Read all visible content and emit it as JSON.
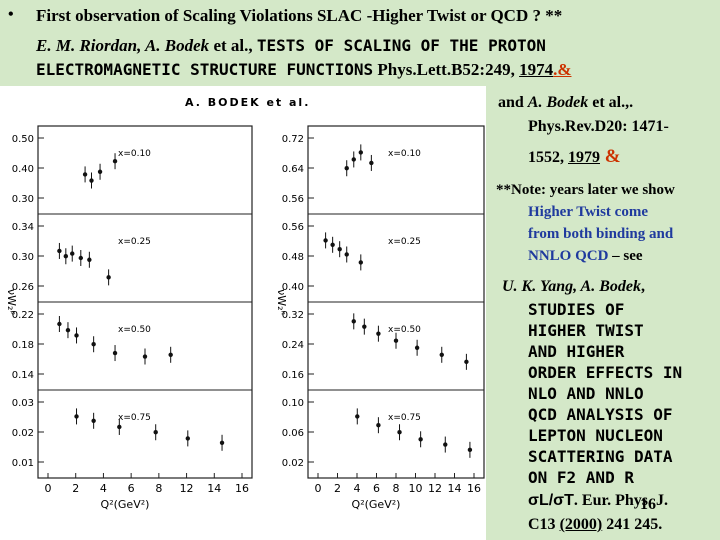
{
  "header": {
    "bullet": "•",
    "line1": "First observation of Scaling Violations SLAC -Higher Twist or QCD ? **",
    "authors": "E. M. Riordan, A. Bodek",
    "authors_etal": " et al., ",
    "title_part1": "TESTS OF SCALING OF THE PROTON",
    "title_part2": "ELECTROMAGNETIC STRUCTURE FUNCTIONS",
    "journal": " Phys.Lett.B52:249, ",
    "year": "1974",
    "amp": ".&"
  },
  "figure": {
    "header_label": "A. BODEK et al.",
    "left_ylabel": "νW₂ᵖ",
    "right_ylabel": "νW₂ⁿ",
    "left_xlabel": "Q²(GeV²)",
    "right_xlabel": "Q²(GeV²)",
    "left_xticks": [
      "0",
      "2",
      "4",
      "6",
      "8",
      "12",
      "14",
      "16"
    ],
    "right_xticks": [
      "0",
      "2",
      "4",
      "6",
      "8",
      "10",
      "12",
      "14",
      "16"
    ],
    "left_panels": [
      {
        "label": "x=0.10",
        "ticks": [
          "0.50",
          "0.40",
          "0.30"
        ]
      },
      {
        "label": "x=0.25",
        "ticks": [
          "0.34",
          "0.30",
          "0.26"
        ]
      },
      {
        "label": "x=0.50",
        "ticks": [
          "0.22",
          "0.18",
          "0.14"
        ]
      },
      {
        "label": "x=0.75",
        "ticks": [
          "0.03",
          "0.02",
          "0.01"
        ]
      }
    ],
    "right_panels": [
      {
        "label": "x=0.10",
        "ticks": [
          "0.72",
          "0.64",
          "0.56"
        ]
      },
      {
        "label": "x=0.25",
        "ticks": [
          "0.56",
          "0.48",
          "0.40"
        ]
      },
      {
        "label": "x=0.50",
        "ticks": [
          "0.32",
          "0.24",
          "0.16"
        ]
      },
      {
        "label": "x=0.75",
        "ticks": [
          "0.10",
          "0.06",
          "0.02"
        ]
      }
    ]
  },
  "right_column": {
    "and_prefix": "and ",
    "ref2_authors": "A. Bodek",
    "ref2_etal": " et al.,.",
    "ref2_journal": "Phys.Rev.D20: 1471-",
    "ref2_pages": "1552, ",
    "ref2_year": "1979",
    "ref2_amp": " &",
    "note_prefix": "**Note: years later we show",
    "note_blue_1": "Higher Twist come",
    "note_blue_2": "from both binding and",
    "note_blue_3": "NNLO QCD",
    "note_suffix": " – see",
    "ref3_authors": "U. K. Yang, A. Bodek",
    "ref3_comma": ",",
    "ref3_title": [
      "STUDIES OF",
      "HIGHER TWIST",
      "AND HIGHER",
      "ORDER EFFECTS IN",
      "NLO AND NNLO",
      "QCD ANALYSIS OF",
      "LEPTON NUCLEON",
      "SCATTERING DATA",
      "ON F2 AND R"
    ],
    "ref3_sigma": "σL/σT",
    "ref3_journal": ". Eur. Phys. J.",
    "ref3_vol": "C13 ",
    "ref3_year": "(2000)",
    "ref3_pages": " 241 245.",
    "slide_number": "16"
  },
  "colors": {
    "background": "#d4e8c8",
    "blue_text": "#1f3a9e",
    "amp_red": "#cc3300"
  }
}
